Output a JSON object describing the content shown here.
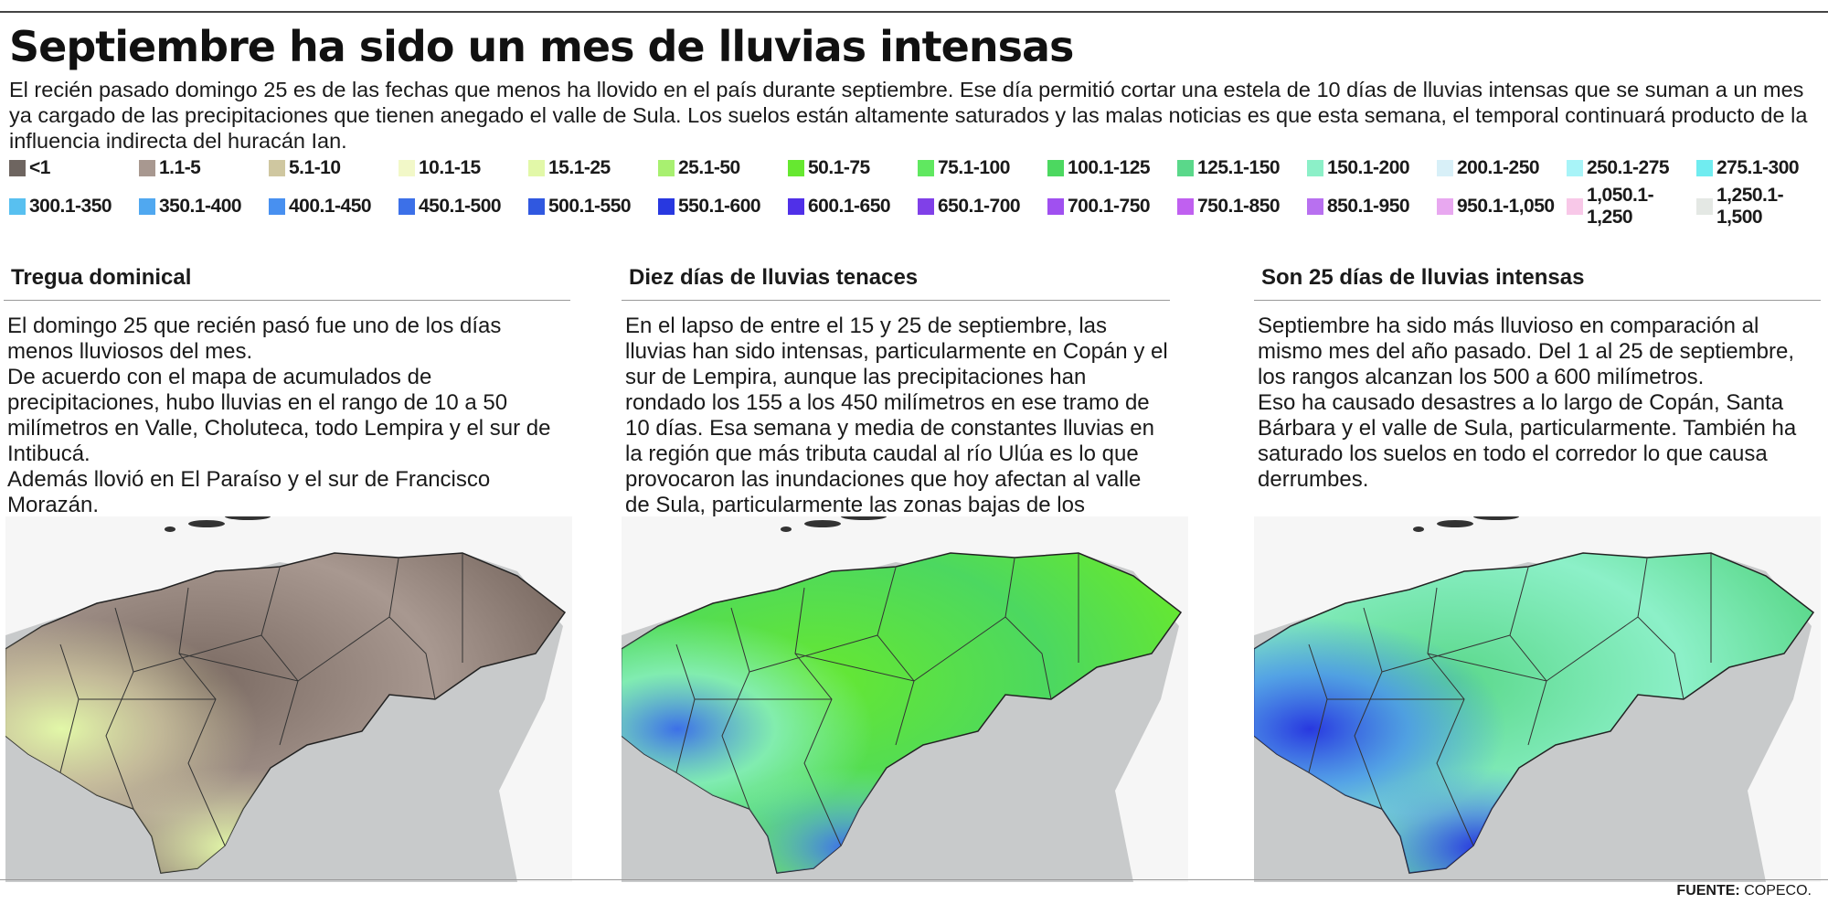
{
  "title": "Septiembre ha sido un mes de lluvias intensas",
  "lead": "El recién pasado domingo 25 es de las fechas que menos ha llovido en el país durante septiembre. Ese día permitió cortar una estela de 10 días de lluvias intensas que se suman a un mes ya cargado de las precipitaciones que tienen anegado el valle de Sula. Los suelos están altamente saturados y las malas noticias es que esta semana, el temporal continuará producto de la influencia indirecta del huracán Ian.",
  "legend": [
    {
      "label": "<1",
      "color": "#6e6560"
    },
    {
      "label": "1.1-5",
      "color": "#a89890"
    },
    {
      "label": "5.1-10",
      "color": "#cfc7a0"
    },
    {
      "label": "10.1-15",
      "color": "#f2f8c8"
    },
    {
      "label": "15.1-25",
      "color": "#e2f8a8"
    },
    {
      "label": "25.1-50",
      "color": "#a8f070"
    },
    {
      "label": "50.1-75",
      "color": "#66e830"
    },
    {
      "label": "75.1-100",
      "color": "#60e860"
    },
    {
      "label": "100.1-125",
      "color": "#4cd860"
    },
    {
      "label": "125.1-150",
      "color": "#5ad88a"
    },
    {
      "label": "150.1-200",
      "color": "#8cf0c8"
    },
    {
      "label": "200.1-250",
      "color": "#d8f0f8"
    },
    {
      "label": "250.1-275",
      "color": "#a8f4f8"
    },
    {
      "label": "275.1-300",
      "color": "#70ecf0"
    },
    {
      "label": "300.1-350",
      "color": "#58c0f0"
    },
    {
      "label": "350.1-400",
      "color": "#50a8f0"
    },
    {
      "label": "400.1-450",
      "color": "#4890f0"
    },
    {
      "label": "450.1-500",
      "color": "#3c70e8"
    },
    {
      "label": "500.1-550",
      "color": "#3058e0"
    },
    {
      "label": "550.1-600",
      "color": "#2838e0"
    },
    {
      "label": "600.1-650",
      "color": "#5030e8"
    },
    {
      "label": "650.1-700",
      "color": "#8040e8"
    },
    {
      "label": "700.1-750",
      "color": "#a050f0"
    },
    {
      "label": "750.1-850",
      "color": "#c060f0"
    },
    {
      "label": "850.1-950",
      "color": "#b870f0"
    },
    {
      "label": "950.1-1,050",
      "color": "#e8a8f0"
    },
    {
      "label": "1,050.1-1,250",
      "color": "#f8c8e8"
    },
    {
      "label": "1,250.1-1,500",
      "color": "#e4e8e4"
    }
  ],
  "columns": [
    {
      "heading": "Tregua dominical",
      "text": "El domingo 25 que recién pasó fue uno de los días menos lluviosos del mes.\nDe acuerdo con el mapa de acumulados de precipitaciones, hubo lluvias en el rango de 10 a 50 milímetros en Valle, Choluteca, todo Lempira y el sur de Intibucá.\nAdemás llovió en El Paraíso y el sur de Francisco Morazán.",
      "map_colors": [
        "#7a6a62",
        "#a89890",
        "#cfc7a0",
        "#e2f8a8"
      ]
    },
    {
      "heading": "Diez días de lluvias tenaces",
      "text": "En el lapso de entre el 15 y 25 de septiembre, las lluvias han sido intensas, particularmente en Copán y el sur de Lempira, aunque las precipitaciones han rondado los 155 a los 450 milímetros en ese tramo de 10 días. Esa semana y media de constantes lluvias en la región que más tributa caudal al río Ulúa es lo que provocaron las inundaciones que hoy afectan al valle de Sula, particularmente las zonas bajas de los municipios ribereños.",
      "map_colors": [
        "#66e830",
        "#4cd860",
        "#8cf0c8",
        "#3c70e8"
      ]
    },
    {
      "heading": "Son 25 días de lluvias intensas",
      "text": "Septiembre ha sido más lluvioso en comparación al mismo mes del año pasado. Del 1 al 25 de septiembre, los rangos alcanzan los 500 a 600 milímetros.\nEso ha causado desastres a lo largo de Copán, Santa Bárbara y el valle de Sula, particularmente. También ha saturado los suelos en todo el corredor lo que causa derrumbes.",
      "map_colors": [
        "#5ad88a",
        "#8cf0c8",
        "#4890f0",
        "#2838e0"
      ]
    }
  ],
  "footer": {
    "label": "FUENTE:",
    "source": "COPECO."
  }
}
